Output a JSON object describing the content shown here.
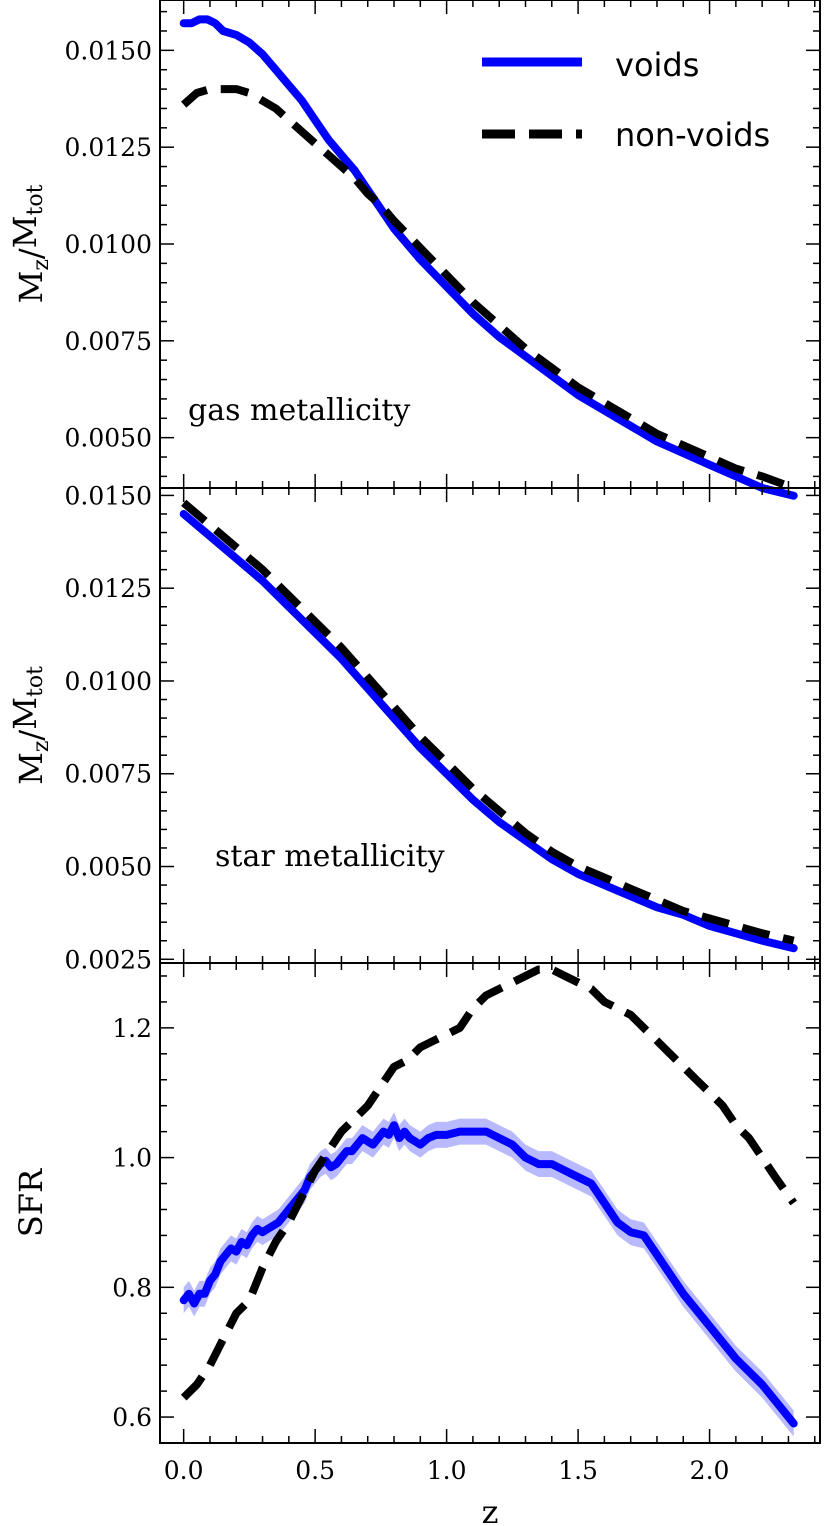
{
  "colors": {
    "voids": "#0000ff",
    "voids_band": "#8080ff",
    "non_voids": "#000000"
  },
  "legend": {
    "placement": "top-right",
    "voids_label": "voids",
    "non_voids_label": "non-voids"
  },
  "chart_data": [
    {
      "type": "line",
      "panel_label": "gas metallicity",
      "ylabel_base": "M",
      "ylabel_sub1": "z",
      "ylabel_slash": "/",
      "ylabel_base2": "M",
      "ylabel_sub2": "tot",
      "xlim": [
        -0.09,
        2.42
      ],
      "ylim": [
        0.0037,
        0.0163
      ],
      "yticks": [
        0.005,
        0.0075,
        0.01,
        0.0125,
        0.015
      ],
      "ytick_labels": [
        "0.0050",
        "0.0075",
        "0.0100",
        "0.0125",
        "0.0150"
      ],
      "series": [
        {
          "name": "voids",
          "x": [
            0.0,
            0.03,
            0.06,
            0.09,
            0.12,
            0.15,
            0.2,
            0.25,
            0.3,
            0.35,
            0.4,
            0.45,
            0.5,
            0.55,
            0.6,
            0.65,
            0.7,
            0.75,
            0.8,
            0.9,
            1.0,
            1.1,
            1.2,
            1.3,
            1.4,
            1.5,
            1.6,
            1.7,
            1.8,
            1.9,
            2.0,
            2.1,
            2.2,
            2.32
          ],
          "y": [
            0.0157,
            0.0157,
            0.0158,
            0.0158,
            0.0157,
            0.0155,
            0.0154,
            0.0152,
            0.0149,
            0.0145,
            0.0141,
            0.0137,
            0.0132,
            0.0127,
            0.0123,
            0.0119,
            0.0114,
            0.0109,
            0.0104,
            0.0096,
            0.0089,
            0.0082,
            0.0076,
            0.0071,
            0.0066,
            0.0061,
            0.0057,
            0.0053,
            0.0049,
            0.0046,
            0.0043,
            0.004,
            0.0037,
            0.0035
          ]
        },
        {
          "name": "non-voids",
          "x": [
            0.0,
            0.05,
            0.1,
            0.15,
            0.2,
            0.25,
            0.3,
            0.35,
            0.4,
            0.45,
            0.5,
            0.55,
            0.6,
            0.65,
            0.7,
            0.75,
            0.8,
            0.9,
            1.0,
            1.1,
            1.2,
            1.3,
            1.4,
            1.5,
            1.6,
            1.7,
            1.8,
            1.9,
            2.0,
            2.1,
            2.2,
            2.32
          ],
          "y": [
            0.0136,
            0.0139,
            0.014,
            0.014,
            0.014,
            0.0139,
            0.0137,
            0.0135,
            0.0132,
            0.0129,
            0.0126,
            0.0123,
            0.012,
            0.0117,
            0.0113,
            0.011,
            0.0106,
            0.0099,
            0.0092,
            0.0085,
            0.0079,
            0.0073,
            0.0068,
            0.0063,
            0.0059,
            0.0055,
            0.0051,
            0.0048,
            0.0045,
            0.0042,
            0.004,
            0.0037
          ]
        }
      ]
    },
    {
      "type": "line",
      "panel_label": "star metallicity",
      "ylabel_base": "M",
      "ylabel_sub1": "z",
      "ylabel_slash": "/",
      "ylabel_base2": "M",
      "ylabel_sub2": "tot",
      "xlim": [
        -0.09,
        2.42
      ],
      "ylim": [
        0.0024,
        0.0152
      ],
      "yticks": [
        0.0025,
        0.005,
        0.0075,
        0.01,
        0.0125,
        0.015
      ],
      "ytick_labels": [
        "0.0025",
        "0.0050",
        "0.0075",
        "0.0100",
        "0.0125",
        "0.0150"
      ],
      "series": [
        {
          "name": "voids",
          "x": [
            0.0,
            0.1,
            0.2,
            0.3,
            0.4,
            0.5,
            0.6,
            0.7,
            0.8,
            0.9,
            1.0,
            1.1,
            1.2,
            1.3,
            1.4,
            1.5,
            1.6,
            1.7,
            1.8,
            1.9,
            2.0,
            2.1,
            2.2,
            2.32
          ],
          "y": [
            0.0145,
            0.0139,
            0.0133,
            0.0127,
            0.012,
            0.0113,
            0.0106,
            0.0098,
            0.009,
            0.0082,
            0.0075,
            0.0068,
            0.0062,
            0.0057,
            0.0052,
            0.0048,
            0.0045,
            0.0042,
            0.0039,
            0.0037,
            0.0034,
            0.0032,
            0.003,
            0.0028
          ]
        },
        {
          "name": "non-voids",
          "x": [
            0.0,
            0.1,
            0.2,
            0.3,
            0.4,
            0.5,
            0.6,
            0.7,
            0.8,
            0.9,
            1.0,
            1.1,
            1.2,
            1.3,
            1.4,
            1.5,
            1.6,
            1.7,
            1.8,
            1.9,
            2.0,
            2.1,
            2.2,
            2.32
          ],
          "y": [
            0.0148,
            0.0142,
            0.0136,
            0.013,
            0.0123,
            0.0116,
            0.0109,
            0.0101,
            0.0093,
            0.0085,
            0.0078,
            0.0071,
            0.0065,
            0.0059,
            0.0054,
            0.005,
            0.0047,
            0.0044,
            0.0041,
            0.0038,
            0.0036,
            0.0034,
            0.0032,
            0.003
          ]
        }
      ]
    },
    {
      "type": "line",
      "ylabel": "SFR",
      "xlabel": "z",
      "xlim": [
        -0.09,
        2.42
      ],
      "ylim": [
        0.56,
        1.3
      ],
      "xticks": [
        0.0,
        0.5,
        1.0,
        1.5,
        2.0
      ],
      "xtick_labels": [
        "0.0",
        "0.5",
        "1.0",
        "1.5",
        "2.0"
      ],
      "yticks": [
        0.6,
        0.8,
        1.0,
        1.2
      ],
      "ytick_labels": [
        "0.6",
        "0.8",
        "1.0",
        "1.2"
      ],
      "series": [
        {
          "name": "voids",
          "band": 0.02,
          "x": [
            0.0,
            0.02,
            0.04,
            0.06,
            0.08,
            0.1,
            0.12,
            0.14,
            0.16,
            0.18,
            0.2,
            0.22,
            0.24,
            0.26,
            0.28,
            0.3,
            0.32,
            0.34,
            0.36,
            0.38,
            0.4,
            0.42,
            0.44,
            0.46,
            0.48,
            0.5,
            0.52,
            0.54,
            0.56,
            0.58,
            0.6,
            0.62,
            0.64,
            0.66,
            0.68,
            0.7,
            0.72,
            0.74,
            0.76,
            0.78,
            0.8,
            0.82,
            0.84,
            0.86,
            0.88,
            0.9,
            0.93,
            0.96,
            1.0,
            1.05,
            1.1,
            1.15,
            1.2,
            1.25,
            1.3,
            1.35,
            1.4,
            1.45,
            1.5,
            1.55,
            1.6,
            1.65,
            1.7,
            1.75,
            1.8,
            1.9,
            2.0,
            2.1,
            2.2,
            2.32
          ],
          "y": [
            0.78,
            0.79,
            0.775,
            0.79,
            0.79,
            0.81,
            0.82,
            0.84,
            0.85,
            0.86,
            0.855,
            0.87,
            0.865,
            0.88,
            0.89,
            0.885,
            0.89,
            0.895,
            0.9,
            0.91,
            0.92,
            0.93,
            0.94,
            0.95,
            0.97,
            0.98,
            0.99,
            0.995,
            0.985,
            0.99,
            1.0,
            1.01,
            1.01,
            1.02,
            1.03,
            1.025,
            1.02,
            1.03,
            1.04,
            1.035,
            1.05,
            1.03,
            1.04,
            1.03,
            1.025,
            1.02,
            1.03,
            1.035,
            1.035,
            1.04,
            1.04,
            1.04,
            1.03,
            1.02,
            1.0,
            0.99,
            0.99,
            0.98,
            0.97,
            0.96,
            0.93,
            0.9,
            0.885,
            0.88,
            0.85,
            0.79,
            0.74,
            0.69,
            0.65,
            0.59
          ]
        },
        {
          "name": "non-voids",
          "x": [
            0.0,
            0.05,
            0.1,
            0.15,
            0.2,
            0.25,
            0.3,
            0.35,
            0.4,
            0.45,
            0.5,
            0.55,
            0.6,
            0.65,
            0.7,
            0.75,
            0.8,
            0.85,
            0.9,
            0.95,
            1.0,
            1.05,
            1.1,
            1.15,
            1.2,
            1.25,
            1.3,
            1.35,
            1.4,
            1.45,
            1.5,
            1.55,
            1.6,
            1.65,
            1.7,
            1.75,
            1.8,
            1.85,
            1.9,
            1.95,
            2.0,
            2.05,
            2.1,
            2.15,
            2.2,
            2.25,
            2.32
          ],
          "y": [
            0.63,
            0.65,
            0.68,
            0.72,
            0.76,
            0.78,
            0.83,
            0.87,
            0.9,
            0.94,
            0.98,
            1.01,
            1.04,
            1.06,
            1.08,
            1.11,
            1.14,
            1.15,
            1.17,
            1.18,
            1.19,
            1.2,
            1.23,
            1.25,
            1.26,
            1.27,
            1.28,
            1.29,
            1.29,
            1.28,
            1.27,
            1.26,
            1.24,
            1.23,
            1.22,
            1.2,
            1.18,
            1.16,
            1.14,
            1.12,
            1.1,
            1.08,
            1.05,
            1.03,
            1.0,
            0.97,
            0.93
          ]
        }
      ]
    }
  ]
}
